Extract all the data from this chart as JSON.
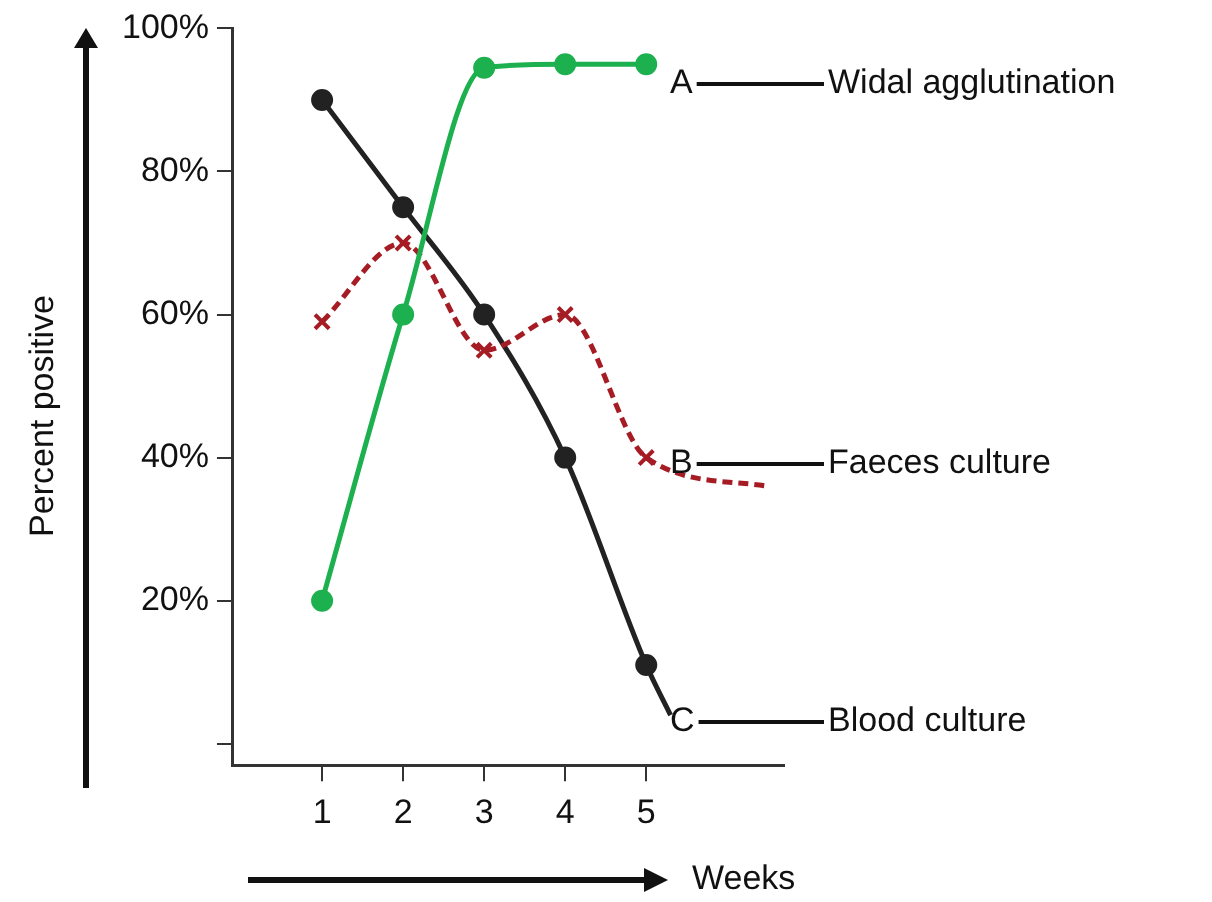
{
  "chart_data": {
    "type": "line",
    "xlabel": "Weeks",
    "ylabel": "Percent positive",
    "xlim": [
      -0.1,
      6.7
    ],
    "xticks": [
      1,
      2,
      3,
      4,
      5
    ],
    "ylim": [
      -3,
      100
    ],
    "yticks": [
      {
        "value": 0,
        "label": null
      },
      {
        "value": 20,
        "label": "20%"
      },
      {
        "value": 40,
        "label": "40%"
      },
      {
        "value": 60,
        "label": "60%"
      },
      {
        "value": 80,
        "label": "80%"
      },
      {
        "value": 100,
        "label": "100%"
      }
    ],
    "grid": false,
    "legend": false,
    "marker": "circle",
    "series": [
      {
        "name": "Widal agglutination",
        "color": "#1db04f",
        "x": [
          1,
          2,
          3,
          4,
          5
        ],
        "values": [
          20,
          60,
          94.5,
          95,
          95
        ]
      },
      {
        "name": "Faeces culture",
        "color": "#a61c24",
        "marker": "cross",
        "line_style": "dashed",
        "x": [
          1,
          2,
          3,
          4,
          5,
          6.5
        ],
        "values": [
          59,
          70,
          55,
          60,
          40,
          36
        ]
      },
      {
        "name": "Blood culture",
        "color": "#222222",
        "x": [
          1,
          2,
          3,
          4,
          5,
          5.3
        ],
        "values": [
          90,
          75,
          60,
          40,
          11,
          4
        ]
      }
    ],
    "annotations": [
      "A",
      "B",
      "C"
    ]
  }
}
